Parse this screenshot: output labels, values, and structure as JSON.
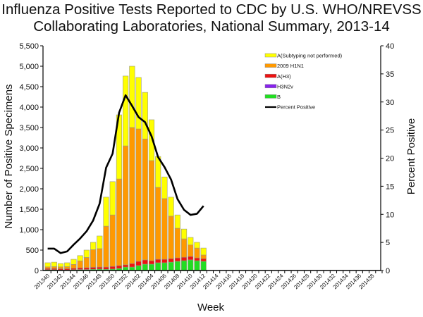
{
  "chart_data": {
    "type": "bar",
    "stacked": true,
    "title_lines": [
      "Influenza Positive Tests Reported to CDC by U.S. WHO/NREVSS",
      "Collaborating Laboratories, National Summary, 2013-14"
    ],
    "xlabel": "Week",
    "ylabel": "Number of Positive Specimens",
    "y2label": "Percent Positive",
    "ylim": [
      0,
      5500
    ],
    "y2lim": [
      0,
      40
    ],
    "yticks": [
      "0",
      "500",
      "1,000",
      "1,500",
      "2,000",
      "2,500",
      "3,000",
      "3,500",
      "4,000",
      "4,500",
      "5,000",
      "5,500"
    ],
    "y2ticks": [
      "0",
      "5",
      "10",
      "15",
      "20",
      "25",
      "30",
      "35",
      "40"
    ],
    "x_axis_weeks": [
      "201340",
      "201341",
      "201342",
      "201343",
      "201344",
      "201345",
      "201346",
      "201347",
      "201348",
      "201349",
      "201350",
      "201351",
      "201352",
      "201401",
      "201402",
      "201403",
      "201404",
      "201405",
      "201406",
      "201407",
      "201408",
      "201409",
      "201410",
      "201411",
      "201412",
      "201413",
      "201414",
      "201415",
      "201416",
      "201417",
      "201418",
      "201419",
      "201420",
      "201421",
      "201422",
      "201423",
      "201424",
      "201425",
      "201426",
      "201427",
      "201428",
      "201429",
      "201430",
      "201431",
      "201432",
      "201433",
      "201434",
      "201435",
      "201436",
      "201437",
      "201438",
      "201439"
    ],
    "x_tick_labels": [
      "201340",
      "201342",
      "201344",
      "201346",
      "201348",
      "201350",
      "201352",
      "201402",
      "201404",
      "201406",
      "201408",
      "201410",
      "201412",
      "201414",
      "201416",
      "201418",
      "201420",
      "201422",
      "201424",
      "201426",
      "201428",
      "201430",
      "201432",
      "201434",
      "201436",
      "201438"
    ],
    "categories": [
      "201340",
      "201341",
      "201342",
      "201343",
      "201344",
      "201345",
      "201346",
      "201347",
      "201348",
      "201349",
      "201350",
      "201351",
      "201352",
      "201401",
      "201402",
      "201403",
      "201404",
      "201405",
      "201406",
      "201407",
      "201408",
      "201409",
      "201410",
      "201411",
      "201412"
    ],
    "legend_position": "top-right",
    "grid": false,
    "series": [
      {
        "name": "B",
        "kind": "bar",
        "color": "#22dd22",
        "values": [
          20,
          20,
          15,
          15,
          20,
          25,
          25,
          30,
          35,
          30,
          35,
          50,
          85,
          85,
          120,
          155,
          155,
          190,
          190,
          205,
          225,
          240,
          260,
          240,
          225
        ]
      },
      {
        "name": "H3N2v",
        "kind": "bar",
        "color": "#8822ee",
        "values": [
          0,
          0,
          0,
          0,
          0,
          0,
          0,
          0,
          0,
          0,
          0,
          0,
          0,
          0,
          0,
          0,
          0,
          0,
          0,
          0,
          0,
          0,
          0,
          0,
          0
        ]
      },
      {
        "name": "A(H3)",
        "kind": "bar",
        "color": "#ee1111",
        "values": [
          30,
          30,
          30,
          30,
          35,
          40,
          45,
          50,
          50,
          55,
          65,
          70,
          55,
          85,
          105,
          105,
          85,
          85,
          85,
          85,
          85,
          85,
          85,
          70,
          65
        ]
      },
      {
        "name": "2009 H1N1",
        "kind": "bar",
        "color": "#ff9900",
        "values": [
          40,
          45,
          45,
          50,
          95,
          170,
          250,
          430,
          450,
          1000,
          1260,
          2120,
          2910,
          3330,
          3240,
          2960,
          2450,
          1760,
          1485,
          1040,
          725,
          450,
          280,
          240,
          90
        ]
      },
      {
        "name": "A(Subtyping not performed)",
        "kind": "bar",
        "color": "#ffff00",
        "values": [
          100,
          110,
          80,
          95,
          125,
          130,
          180,
          180,
          310,
          710,
          815,
          1570,
          1710,
          1500,
          1260,
          1140,
          1000,
          755,
          530,
          465,
          325,
          240,
          185,
          140,
          170
        ]
      },
      {
        "name": "Percent Positive",
        "kind": "line",
        "axis": "right",
        "color": "#000000",
        "values": [
          3.9,
          3.9,
          3.1,
          3.4,
          4.6,
          5.7,
          7.0,
          8.9,
          11.9,
          18.3,
          20.8,
          28.1,
          31.2,
          29.3,
          27.3,
          26.4,
          23.9,
          20.2,
          18.4,
          16.2,
          12.7,
          10.8,
          9.9,
          10.1,
          11.5
        ]
      }
    ],
    "legend_order": [
      "A(Subtyping not performed)",
      "2009 H1N1",
      "A(H3)",
      "H3N2v",
      "B",
      "Percent Positive"
    ]
  }
}
